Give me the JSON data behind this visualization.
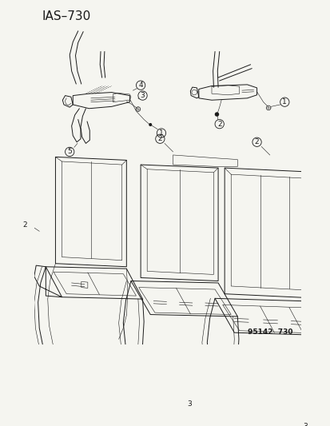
{
  "title": "IAS–730",
  "watermark": "95142  730",
  "bg_color": "#f5f5f0",
  "line_color": "#1a1a1a",
  "title_fontsize": 11,
  "label_fontsize": 6.5,
  "watermark_fontsize": 6.5
}
